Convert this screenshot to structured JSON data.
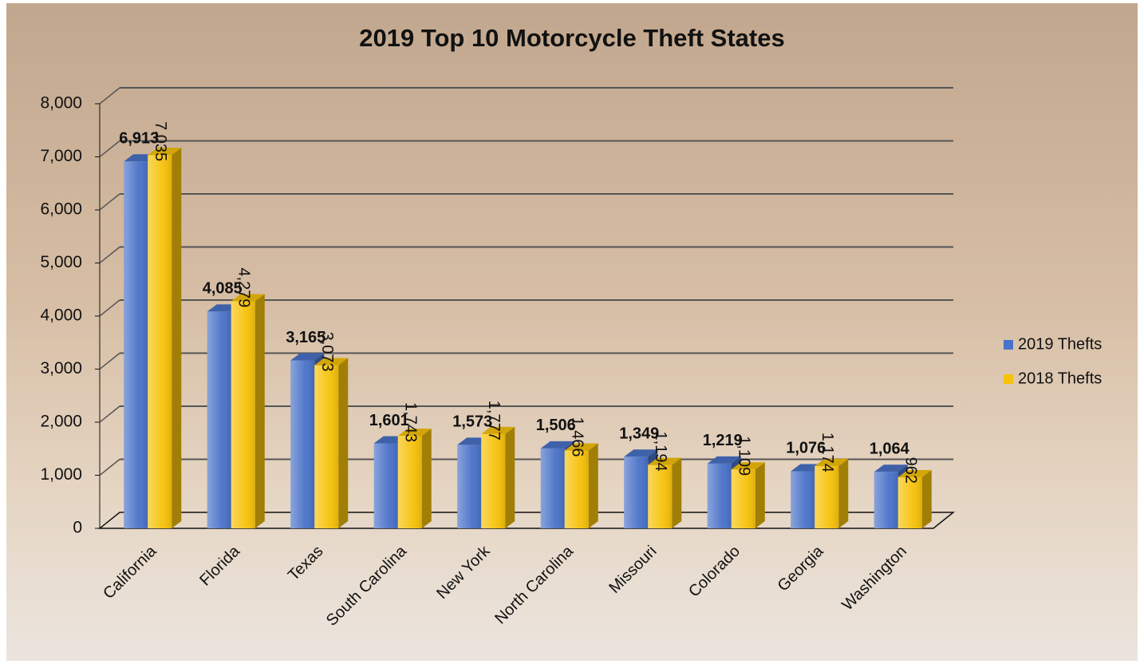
{
  "chart_data": {
    "type": "bar3d",
    "title": "2019 Top 10 Motorcycle Theft States",
    "categories": [
      "California",
      "Florida",
      "Texas",
      "South Carolina",
      "New York",
      "North Carolina",
      "Missouri",
      "Colorado",
      "Georgia",
      "Washington"
    ],
    "series": [
      {
        "name": "2019 Thefts",
        "color": "#4a72c8",
        "values": [
          6913,
          4085,
          3165,
          1601,
          1573,
          1506,
          1349,
          1219,
          1076,
          1064
        ],
        "value_labels": [
          "6,913",
          "4,085",
          "3,165",
          "1,601",
          "1,573",
          "1,506",
          "1,349",
          "1,219",
          "1,076",
          "1,064"
        ]
      },
      {
        "name": "2018 Thefts",
        "color": "#f7c20a",
        "values": [
          7035,
          4279,
          3073,
          1743,
          1777,
          1466,
          1194,
          1109,
          1174,
          962
        ],
        "value_labels": [
          "7,035",
          "4,279",
          "3,073",
          "1,743",
          "1,777",
          "1,466",
          "1,194",
          "1,109",
          "1,174",
          "962"
        ]
      }
    ],
    "ylim": [
      0,
      8000
    ],
    "yticks": [
      0,
      {
        "value": 1000,
        "label": "1,000"
      },
      {
        "value": 2000,
        "label": "2,000"
      },
      {
        "value": 3000,
        "label": "3,000"
      },
      {
        "value": 4000,
        "label": "4,000"
      },
      {
        "value": 5000,
        "label": "5,000"
      },
      {
        "value": 6000,
        "label": "6,000"
      },
      {
        "value": 7000,
        "label": "7,000"
      },
      {
        "value": 8000,
        "label": "8,000"
      }
    ],
    "grid": true,
    "legend": "right"
  }
}
